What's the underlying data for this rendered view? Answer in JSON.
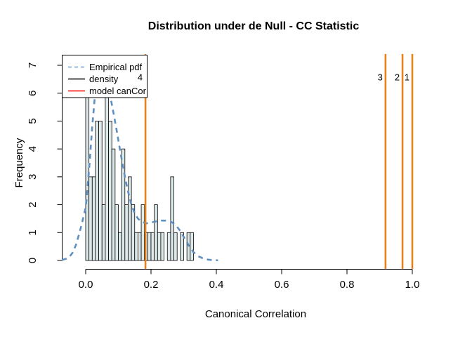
{
  "window": {
    "background": "#FFFFFF"
  },
  "chart_data": {
    "type": "bar",
    "subtype": "histogram-with-density-overlay",
    "title": "Distribution under de Null - CC Statistic",
    "xlabel": "Canonical Correlation",
    "ylabel": "Frequency",
    "xlim": [
      -0.073,
      1.125
    ],
    "ylim": [
      0,
      7
    ],
    "grid": false,
    "xticks": {
      "values": [
        0.0,
        0.2,
        0.4,
        0.6,
        0.8,
        1.0
      ],
      "labels": [
        "0.0",
        "0.2",
        "0.4",
        "0.6",
        "0.8",
        "1.0"
      ]
    },
    "yticks": {
      "values": [
        0,
        1,
        2,
        3,
        4,
        5,
        6,
        7
      ],
      "labels": [
        "0",
        "1",
        "2",
        "3",
        "4",
        "5",
        "6",
        "7"
      ]
    },
    "histogram": {
      "name": "density",
      "bin_start": 0.0,
      "bin_width": 0.01,
      "counts": [
        6,
        3,
        3,
        5,
        5,
        2,
        7,
        5,
        4,
        2,
        1,
        4,
        2,
        3,
        2,
        1,
        1,
        2,
        1,
        1,
        1,
        2,
        1,
        1,
        0,
        1,
        3,
        1,
        0,
        1,
        0,
        1,
        1
      ],
      "bar_fill": "#DEE9EA",
      "bar_stroke": "#000000"
    },
    "density_curve": {
      "name": "Empirical pdf",
      "color": "#5E8FC0",
      "style": "dashed",
      "x": [
        -0.073,
        -0.06,
        -0.05,
        -0.04,
        -0.03,
        -0.02,
        -0.01,
        0,
        0.005,
        0.012,
        0.02,
        0.027,
        0.035,
        0.045,
        0.055,
        0.065,
        0.076,
        0.085,
        0.095,
        0.106,
        0.117,
        0.128,
        0.14,
        0.15,
        0.16,
        0.17,
        0.185,
        0.2,
        0.215,
        0.23,
        0.245,
        0.26,
        0.275,
        0.29,
        0.3,
        0.315,
        0.33,
        0.345,
        0.36,
        0.375,
        0.39,
        0.405
      ],
      "y": [
        0.02,
        0.06,
        0.13,
        0.28,
        0.55,
        0.95,
        1.4,
        1.9,
        2.5,
        3.5,
        4.8,
        5.75,
        6.25,
        6.4,
        6.3,
        6.1,
        5.85,
        5.3,
        4.65,
        3.9,
        3.2,
        2.55,
        2.0,
        1.7,
        1.5,
        1.4,
        1.33,
        1.36,
        1.4,
        1.43,
        1.43,
        1.4,
        1.28,
        1.05,
        0.85,
        0.55,
        0.3,
        0.15,
        0.07,
        0.03,
        0.01,
        0.005
      ]
    },
    "model_cancor_lines": {
      "color": "#E8821D",
      "items": [
        {
          "label": "4",
          "x": 0.183
        },
        {
          "label": "3",
          "x": 0.918
        },
        {
          "label": "2",
          "x": 0.97
        },
        {
          "label": "1",
          "x": 1.0
        }
      ]
    },
    "legend": {
      "position": "topleft",
      "entries": [
        {
          "label": "Empirical pdf",
          "color": "#6C9BC9",
          "style": "dashed"
        },
        {
          "label": "density",
          "color": "#000000",
          "style": "solid"
        },
        {
          "label": "model canCor",
          "color": "#FF0000",
          "style": "solid"
        }
      ]
    }
  }
}
